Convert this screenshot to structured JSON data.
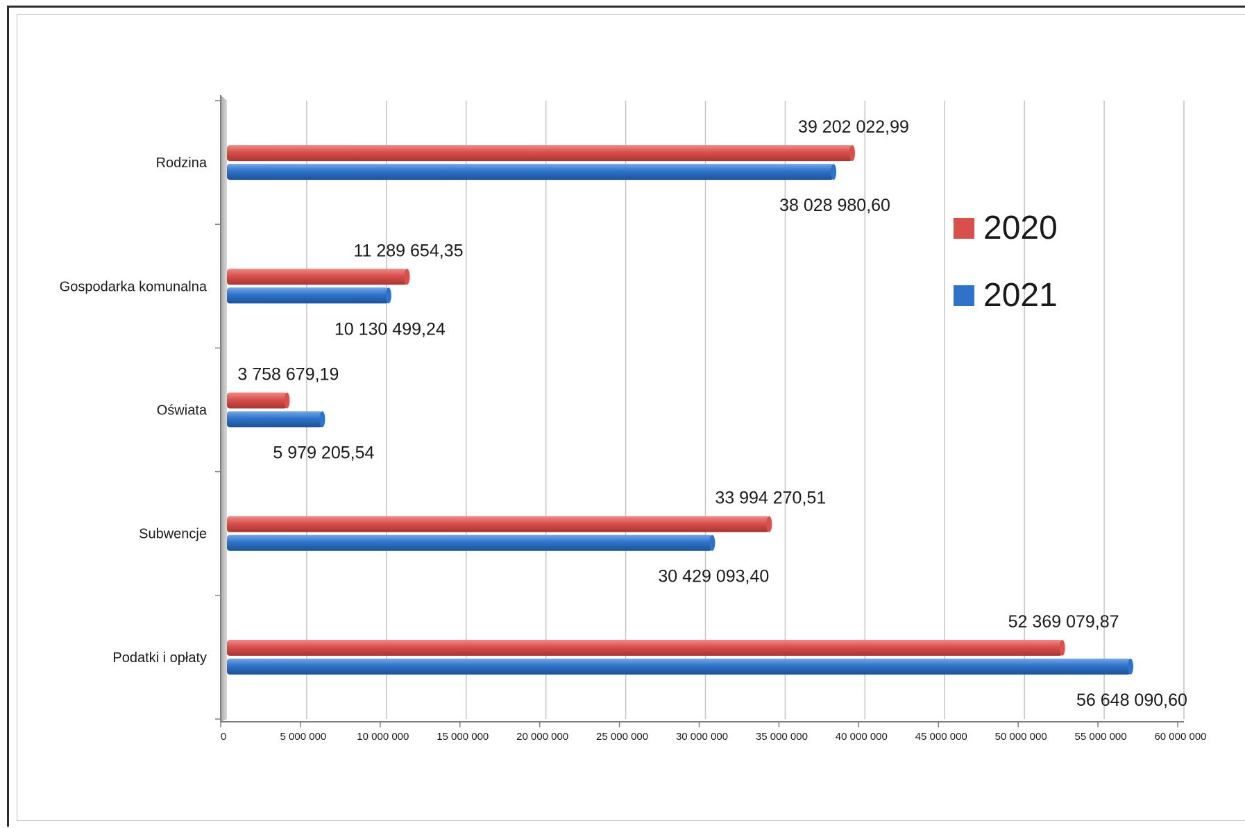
{
  "chart_data": {
    "type": "bar",
    "orientation": "horizontal",
    "categories": [
      "Rodzina",
      "Gospodarka komunalna",
      "Oświata",
      "Subwencje",
      "Podatki i opłaty"
    ],
    "series": [
      {
        "name": "2020",
        "color": "#d8504c",
        "values": [
          39202022.99,
          11289654.35,
          3758679.19,
          33994270.51,
          52369079.87
        ],
        "labels": [
          "39 202 022,99",
          "11 289 654,35",
          "3 758 679,19",
          "33 994 270,51",
          "52 369 079,87"
        ]
      },
      {
        "name": "2021",
        "color": "#2e73c9",
        "values": [
          38028980.6,
          10130499.24,
          5979205.54,
          30429093.4,
          56648090.6
        ],
        "labels": [
          "38 028 980,60",
          "10 130 499,24",
          "5 979 205,54",
          "30 429 093,40",
          "56 648 090,60"
        ]
      }
    ],
    "xlim": [
      0,
      60000000
    ],
    "xticks": [
      0,
      5000000,
      10000000,
      15000000,
      20000000,
      25000000,
      30000000,
      35000000,
      40000000,
      45000000,
      50000000,
      55000000,
      60000000
    ],
    "xtick_labels": [
      "0",
      "5 000 000",
      "10 000 000",
      "15 000 000",
      "20 000 000",
      "25 000 000",
      "30 000 000",
      "35 000 000",
      "40 000 000",
      "45 000 000",
      "50 000 000",
      "55 000 000",
      "60 000 000"
    ],
    "grid": true,
    "legend_position": "right",
    "title": "",
    "xlabel": "",
    "ylabel": ""
  }
}
